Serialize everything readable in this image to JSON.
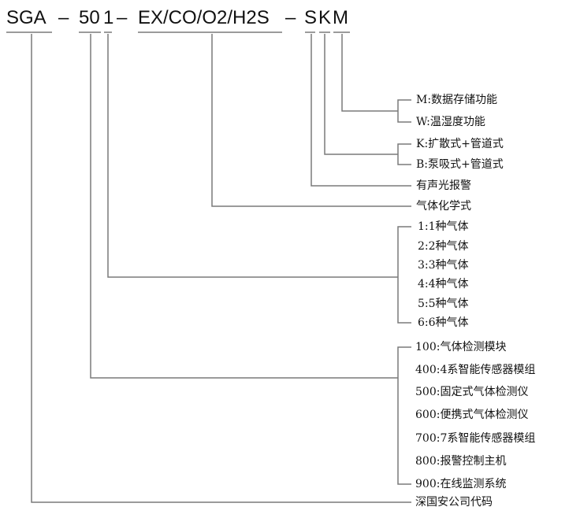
{
  "header_code": {
    "prefix": "SGA",
    "sep1": "–",
    "series": "50",
    "gas_count": "1",
    "sep2": "–",
    "gases": "EX/CO/O2/H2S",
    "sep3": "–",
    "alarm": "S",
    "sampling": "K",
    "function": "M"
  },
  "function_options": [
    "M:数据存储功能",
    "W:温湿度功能"
  ],
  "sampling_options": [
    "K:扩散式+管道式",
    "B:泵吸式+管道式"
  ],
  "alarm_label": "有声光报警",
  "gases_label": "气体化学式",
  "gas_count_options": [
    "1:1种气体",
    "2:2种气体",
    "3:3种气体",
    "4:4种气体",
    "5:5种气体",
    "6:6种气体"
  ],
  "series_options": [
    "100:气体检测模块",
    "400:4系智能传感器模组",
    "500:固定式气体检测仪",
    "600:便携式气体检测仪",
    "700:7系智能传感器模组",
    "800:报警控制主机",
    "900:在线监测系统"
  ],
  "prefix_label": "深国安公司代码",
  "line_color": "#7a7a7a"
}
